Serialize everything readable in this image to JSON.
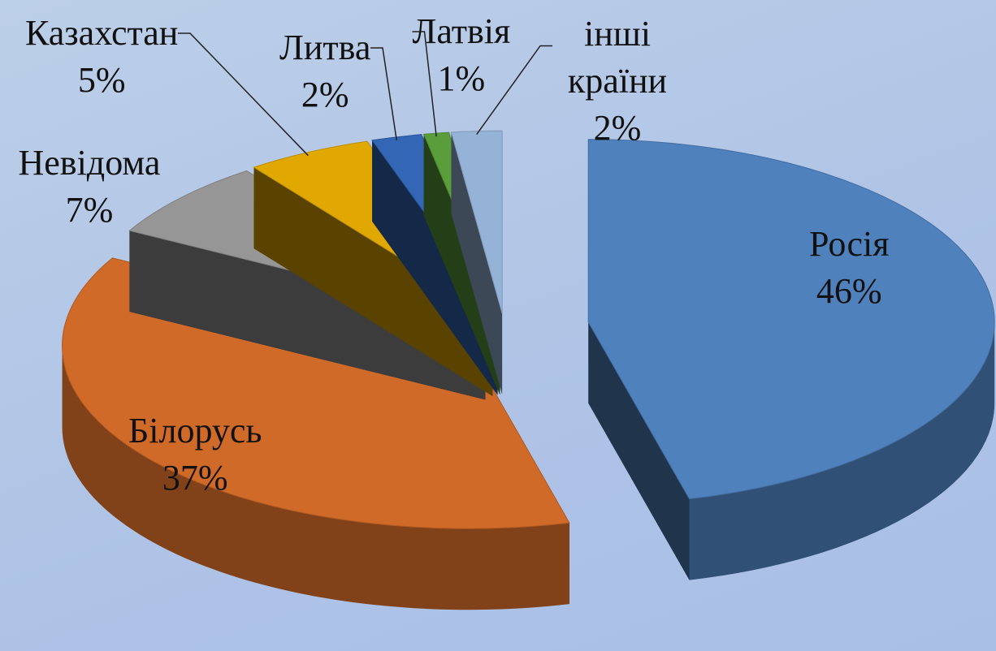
{
  "chart_data": {
    "type": "pie",
    "categories": [
      "Росія",
      "Білорусь",
      "Невідома",
      "Казахстан",
      "Литва",
      "Латвія",
      "інші країни"
    ],
    "values": [
      46,
      37,
      7,
      5,
      2,
      1,
      2
    ],
    "value_labels": [
      "46%",
      "37%",
      "7%",
      "5%",
      "2%",
      "1%",
      "2%"
    ],
    "colors": [
      "#4f81bd",
      "#d06a28",
      "#969696",
      "#e0a800",
      "#3366b5",
      "#5a9e3c",
      "#95b3d7"
    ]
  }
}
